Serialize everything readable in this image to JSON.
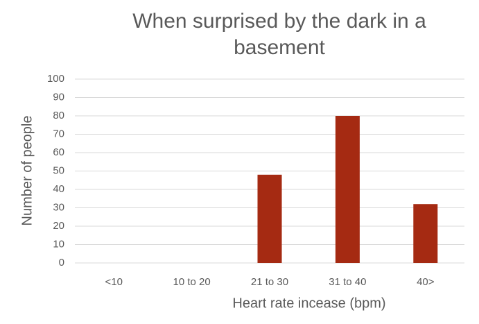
{
  "chart_data": {
    "type": "bar",
    "title": "When surprised by the dark in a basement",
    "x_label": "Heart rate incease (bpm)",
    "y_label": "Number of people",
    "categories": [
      "<10",
      "10 to 20",
      "21 to 30",
      "31 to 40",
      "40>"
    ],
    "values": [
      0,
      0,
      48,
      80,
      32
    ],
    "color": "#a52a12",
    "ylim": [
      0,
      100
    ],
    "yticks": [
      0,
      10,
      20,
      30,
      40,
      50,
      60,
      70,
      80,
      90,
      100
    ],
    "grid": true
  }
}
